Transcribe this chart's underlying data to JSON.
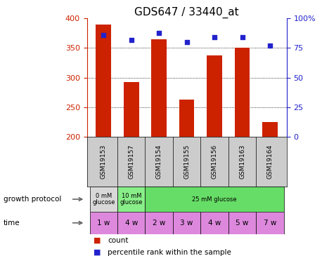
{
  "title": "GDS647 / 33440_at",
  "samples": [
    "GSM19153",
    "GSM19157",
    "GSM19154",
    "GSM19155",
    "GSM19156",
    "GSM19163",
    "GSM19164"
  ],
  "counts": [
    390,
    292,
    365,
    263,
    338,
    350,
    225
  ],
  "percentiles": [
    86,
    82,
    88,
    80,
    84,
    84,
    77
  ],
  "ylim_left": [
    200,
    400
  ],
  "ylim_right": [
    0,
    100
  ],
  "yticks_left": [
    200,
    250,
    300,
    350,
    400
  ],
  "yticks_right": [
    0,
    25,
    50,
    75,
    100
  ],
  "ytick_labels_right": [
    "0",
    "25",
    "50",
    "75",
    "100%"
  ],
  "bar_color": "#cc2200",
  "dot_color": "#2222cc",
  "bar_bottom": 200,
  "gp_labels": [
    "0 mM\nglucose",
    "10 mM\nglucose",
    "25 mM glucose"
  ],
  "gp_xranges": [
    [
      -0.5,
      0.5
    ],
    [
      0.5,
      1.5
    ],
    [
      1.5,
      6.5
    ]
  ],
  "gp_colors": [
    "#d8d8d8",
    "#88ee88",
    "#66dd66"
  ],
  "time_labels": [
    "1 w",
    "4 w",
    "2 w",
    "3 w",
    "4 w",
    "5 w",
    "7 w"
  ],
  "time_color": "#dd88dd",
  "sample_bg": "#cccccc",
  "legend_count_color": "#cc2200",
  "legend_dot_color": "#2222cc",
  "bg_color": "#ffffff",
  "title_fontsize": 11,
  "tick_fontsize": 8,
  "sample_fontsize": 6.5,
  "annot_fontsize": 7.5,
  "legend_fontsize": 7.5
}
